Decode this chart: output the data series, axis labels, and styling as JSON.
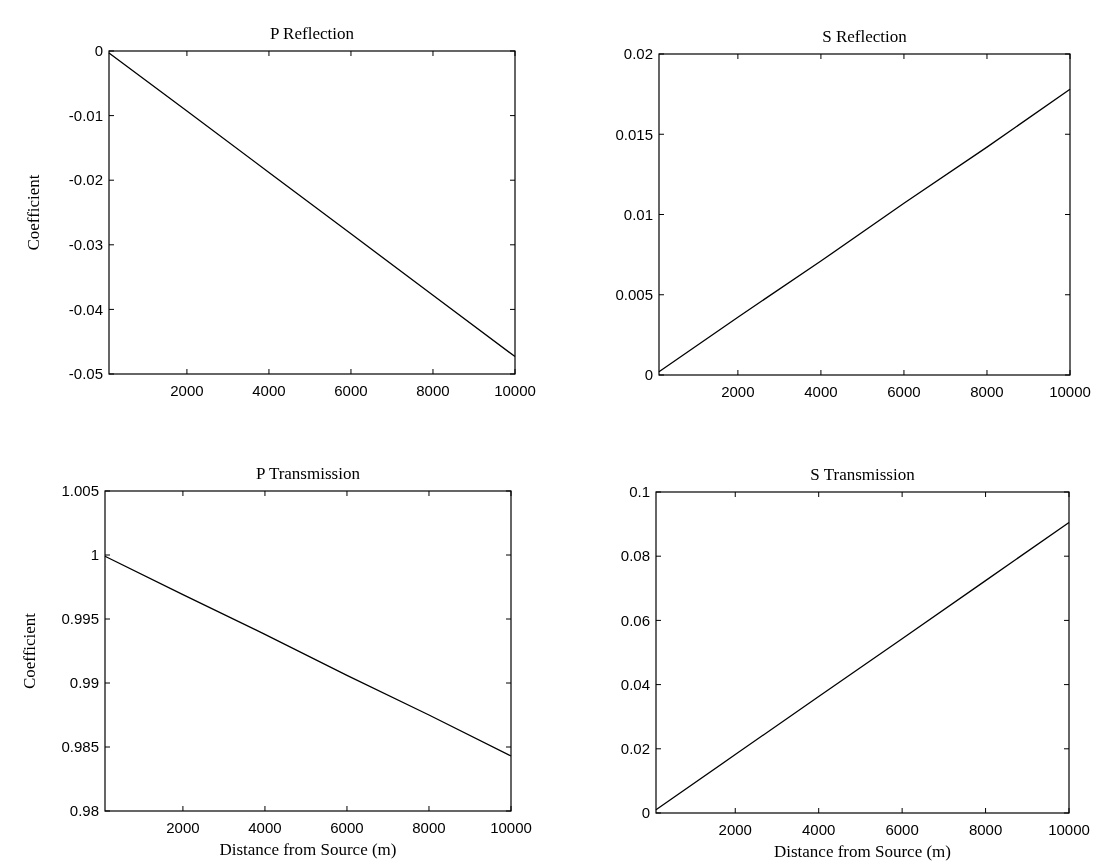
{
  "chart_data": [
    {
      "type": "line",
      "title": "P Reflection",
      "ylabel": "Coefficient",
      "x": [
        100,
        2000,
        4000,
        6000,
        8000,
        10000
      ],
      "series": [
        {
          "color": "#000000",
          "values": [
            -0.0003,
            -0.0093,
            -0.0188,
            -0.0283,
            -0.0378,
            -0.0473
          ]
        }
      ],
      "xlim": [
        100,
        10000
      ],
      "xticks": [
        2000,
        4000,
        6000,
        8000,
        10000
      ],
      "ylim": [
        -0.05,
        0
      ],
      "yticks": [
        -0.05,
        -0.04,
        -0.03,
        -0.02,
        -0.01,
        0
      ],
      "grid": false
    },
    {
      "type": "line",
      "title": "S Reflection",
      "x": [
        100,
        2000,
        4000,
        6000,
        8000,
        10000
      ],
      "series": [
        {
          "color": "#000000",
          "values": [
            0.0002,
            0.0036,
            0.0071,
            0.0107,
            0.0142,
            0.0178
          ]
        }
      ],
      "xlim": [
        100,
        10000
      ],
      "xticks": [
        2000,
        4000,
        6000,
        8000,
        10000
      ],
      "ylim": [
        0,
        0.02
      ],
      "yticks": [
        0,
        0.005,
        0.01,
        0.015,
        0.02
      ],
      "grid": false
    },
    {
      "type": "line",
      "title": "P Transmission",
      "ylabel": "Coefficient",
      "xlabel": "Distance from Source (m)",
      "x": [
        100,
        2000,
        4000,
        6000,
        8000,
        10000
      ],
      "series": [
        {
          "color": "#000000",
          "values": [
            0.9999,
            0.9969,
            0.9938,
            0.9906,
            0.9875,
            0.9843
          ]
        }
      ],
      "xlim": [
        100,
        10000
      ],
      "xticks": [
        2000,
        4000,
        6000,
        8000,
        10000
      ],
      "ylim": [
        0.98,
        1.005
      ],
      "yticks": [
        0.98,
        0.985,
        0.99,
        0.995,
        1,
        1.005
      ],
      "grid": false
    },
    {
      "type": "line",
      "title": "S Transmission",
      "xlabel": "Distance from Source (m)",
      "x": [
        100,
        2000,
        4000,
        6000,
        8000,
        10000
      ],
      "series": [
        {
          "color": "#000000",
          "values": [
            0.001,
            0.0182,
            0.0363,
            0.0543,
            0.0724,
            0.0905
          ]
        }
      ],
      "xlim": [
        100,
        10000
      ],
      "xticks": [
        2000,
        4000,
        6000,
        8000,
        10000
      ],
      "ylim": [
        0,
        0.1
      ],
      "yticks": [
        0,
        0.02,
        0.04,
        0.06,
        0.08,
        0.1
      ],
      "grid": false
    }
  ]
}
